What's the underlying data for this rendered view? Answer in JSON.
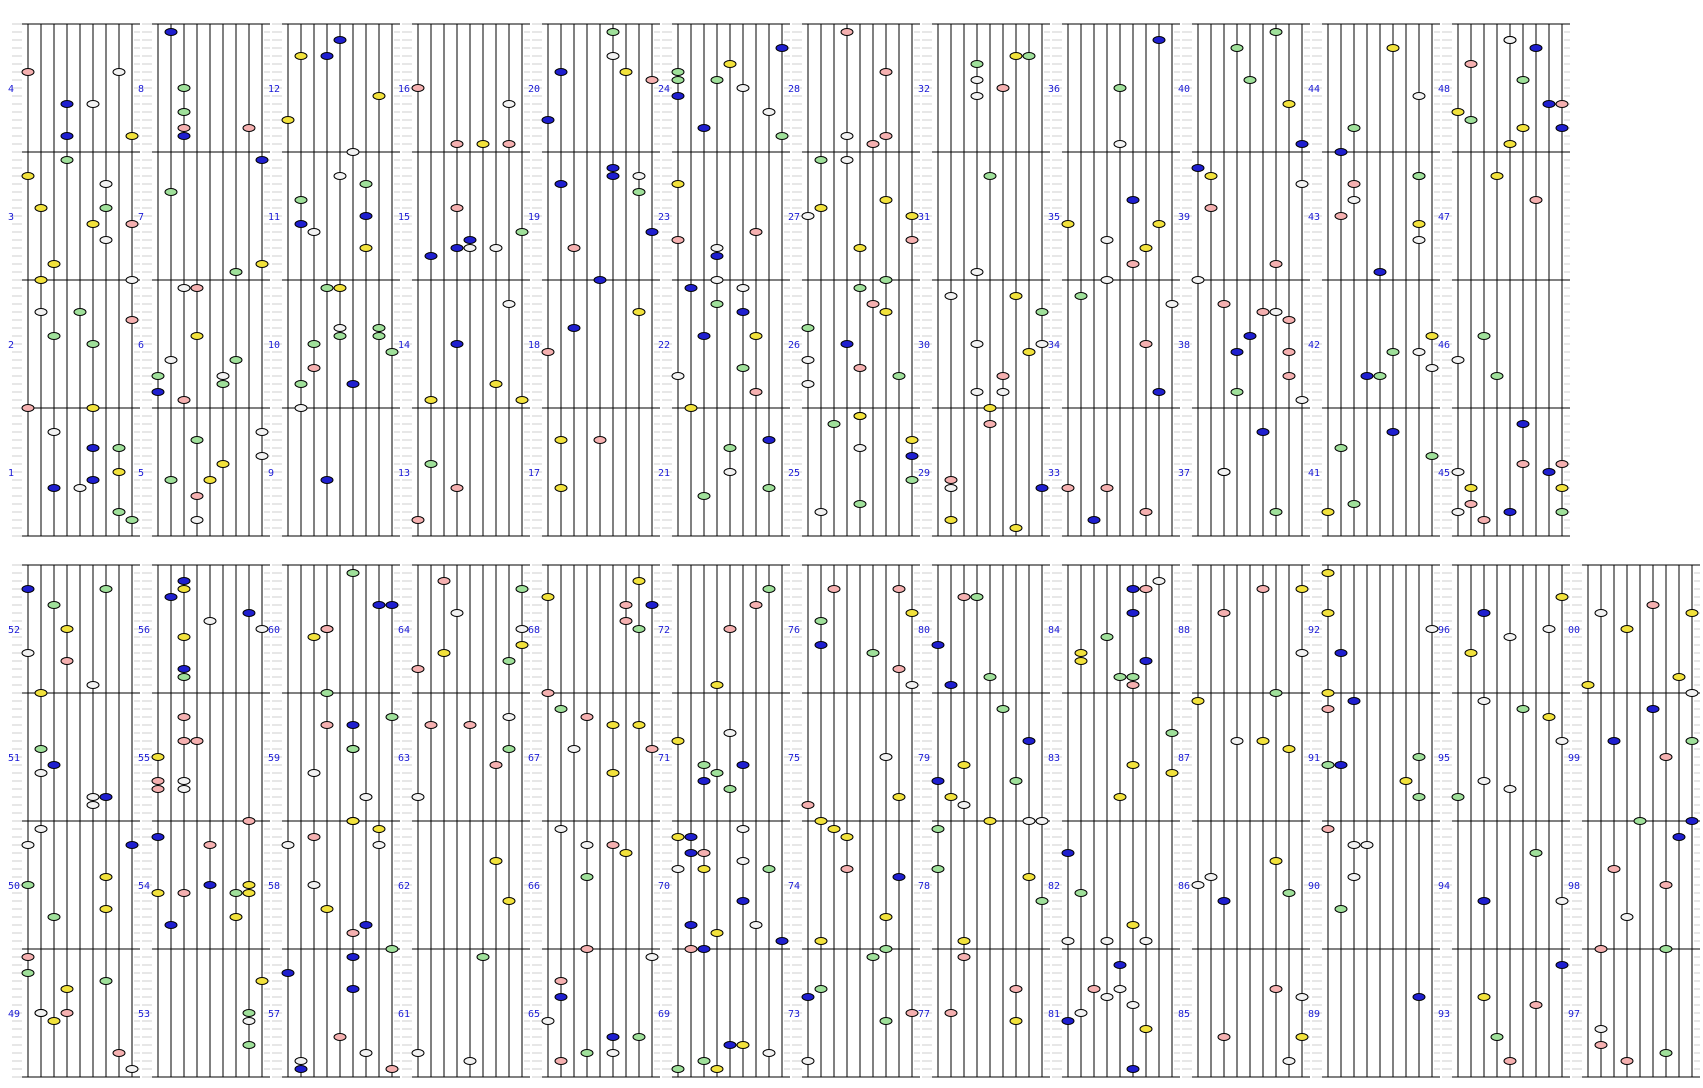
{
  "colors": {
    "blue": "#1f1fcf",
    "green": "#9fe09a",
    "red": "#f5b0b0",
    "yellow": "#f2e23c",
    "white": "#f2f2f2",
    "number": "#1a1ad6"
  },
  "rows": [
    {
      "columns": [
        {
          "labels": [
            "4",
            "3",
            "2",
            "1"
          ]
        },
        {
          "labels": [
            "8",
            "7",
            "6",
            "5"
          ]
        },
        {
          "labels": [
            "12",
            "11",
            "10",
            "9"
          ]
        },
        {
          "labels": [
            "16",
            "15",
            "14",
            "13"
          ]
        },
        {
          "labels": [
            "20",
            "19",
            "18",
            "17"
          ]
        },
        {
          "labels": [
            "24",
            "23",
            "22",
            "21"
          ]
        },
        {
          "labels": [
            "28",
            "27",
            "26",
            "25"
          ]
        },
        {
          "labels": [
            "32",
            "31",
            "30",
            "29"
          ]
        },
        {
          "labels": [
            "36",
            "35",
            "34",
            "33"
          ]
        },
        {
          "labels": [
            "40",
            "39",
            "38",
            "37"
          ]
        },
        {
          "labels": [
            "44",
            "43",
            "42",
            "41"
          ]
        },
        {
          "labels": [
            "48",
            "47",
            "46",
            "45"
          ]
        }
      ]
    },
    {
      "columns": [
        {
          "labels": [
            "52",
            "51",
            "50",
            "49"
          ]
        },
        {
          "labels": [
            "56",
            "55",
            "54",
            "53"
          ]
        },
        {
          "labels": [
            "60",
            "59",
            "58",
            "57"
          ]
        },
        {
          "labels": [
            "64",
            "63",
            "62",
            "61"
          ]
        },
        {
          "labels": [
            "68",
            "67",
            "66",
            "65"
          ]
        },
        {
          "labels": [
            "72",
            "71",
            "70",
            "69"
          ]
        },
        {
          "labels": [
            "76",
            "75",
            "74",
            "73"
          ]
        },
        {
          "labels": [
            "80",
            "79",
            "78",
            "77"
          ]
        },
        {
          "labels": [
            "84",
            "83",
            "82",
            "81"
          ]
        },
        {
          "labels": [
            "88",
            "87",
            "86",
            "85"
          ]
        },
        {
          "labels": [
            "92",
            "91",
            "90",
            "89"
          ]
        },
        {
          "labels": [
            "96",
            "95",
            "94",
            "93"
          ]
        },
        {
          "labels": [
            "00",
            "99",
            "98",
            "97"
          ]
        }
      ]
    }
  ]
}
